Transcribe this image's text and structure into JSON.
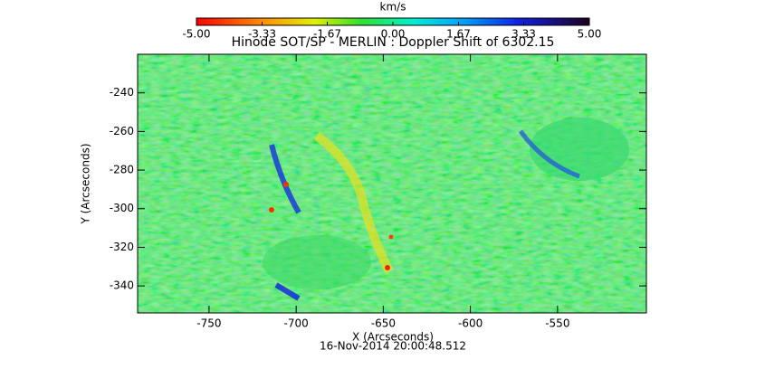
{
  "chart_data": {
    "type": "heatmap",
    "title": "Hinode SOT/SP - MERLIN : Doppler Shift of 6302.15",
    "subtitle": "16-Nov-2014 20:00:48.512",
    "colorbar_label": "km/s",
    "colorbar_lim": [
      -5,
      5
    ],
    "colorbar_ticks": [
      {
        "value": -5,
        "label": "-5.00"
      },
      {
        "value": -3.33,
        "label": "-3.33"
      },
      {
        "value": -1.67,
        "label": "-1.67"
      },
      {
        "value": 0,
        "label": "0.00"
      },
      {
        "value": 1.67,
        "label": "1.67"
      },
      {
        "value": 3.33,
        "label": "3.33"
      },
      {
        "value": 5,
        "label": "5.00"
      }
    ],
    "x_label": "X (Arcseconds)",
    "y_label": "Y (Arcseconds)",
    "xlim": [
      -791,
      -499
    ],
    "xticks": [
      -750,
      -700,
      -650,
      -600,
      -550
    ],
    "ylim": [
      -354,
      -220
    ],
    "yticks": [
      -340,
      -320,
      -300,
      -280,
      -260,
      -240
    ]
  }
}
